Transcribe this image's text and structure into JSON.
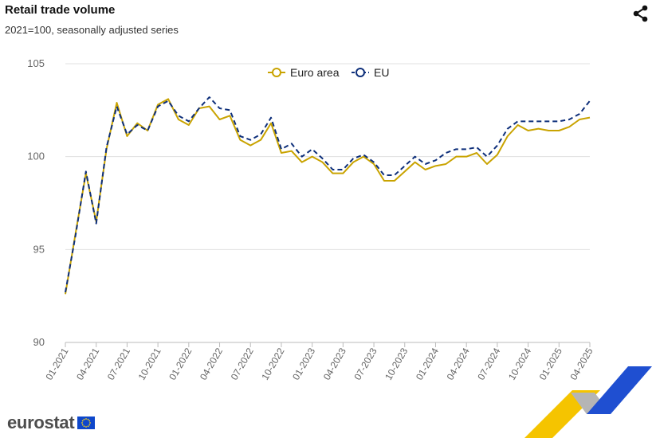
{
  "header": {
    "title": "Retail trade volume",
    "subtitle": "2021=100, seasonally adjusted series",
    "share_icon": "share-icon"
  },
  "branding": {
    "logo_text": "eurostat",
    "flag_icon": "eu-flag-icon"
  },
  "colors": {
    "euro_area": "#c9a300",
    "eu": "#0e2f7a",
    "grid": "#e0e0e0",
    "axis": "#bbbbbb",
    "tick_label": "#666666"
  },
  "chart_data": {
    "type": "line",
    "title": "Retail trade volume",
    "subtitle": "2021=100, seasonally adjusted series",
    "xlabel": "",
    "ylabel": "",
    "ylim": [
      90,
      105
    ],
    "yticks": [
      90,
      95,
      100,
      105
    ],
    "grid": true,
    "legend_position": "top-center",
    "x": [
      "01-2021",
      "02-2021",
      "03-2021",
      "04-2021",
      "05-2021",
      "06-2021",
      "07-2021",
      "08-2021",
      "09-2021",
      "10-2021",
      "11-2021",
      "12-2021",
      "01-2022",
      "02-2022",
      "03-2022",
      "04-2022",
      "05-2022",
      "06-2022",
      "07-2022",
      "08-2022",
      "09-2022",
      "10-2022",
      "11-2022",
      "12-2022",
      "01-2023",
      "02-2023",
      "03-2023",
      "04-2023",
      "05-2023",
      "06-2023",
      "07-2023",
      "08-2023",
      "09-2023",
      "10-2023",
      "11-2023",
      "12-2023",
      "01-2024",
      "02-2024",
      "03-2024",
      "04-2024",
      "05-2024",
      "06-2024",
      "07-2024",
      "08-2024",
      "09-2024",
      "10-2024",
      "11-2024",
      "12-2024",
      "01-2025",
      "02-2025",
      "03-2025",
      "04-2025"
    ],
    "x_tick_labels": [
      "01-2021",
      "04-2021",
      "07-2021",
      "10-2021",
      "01-2022",
      "04-2022",
      "07-2022",
      "10-2022",
      "01-2023",
      "04-2023",
      "07-2023",
      "10-2023",
      "01-2024",
      "04-2024",
      "07-2024",
      "10-2024",
      "01-2025",
      "04-2025"
    ],
    "series": [
      {
        "name": "Euro area",
        "style": "solid",
        "values": [
          92.6,
          95.9,
          99.1,
          96.5,
          100.4,
          102.9,
          101.1,
          101.8,
          101.4,
          102.8,
          103.1,
          102.0,
          101.7,
          102.6,
          102.7,
          102.0,
          102.2,
          100.9,
          100.6,
          100.9,
          101.8,
          100.2,
          100.3,
          99.7,
          100.0,
          99.7,
          99.1,
          99.1,
          99.7,
          100.0,
          99.6,
          98.7,
          98.7,
          99.2,
          99.7,
          99.3,
          99.5,
          99.6,
          100.0,
          100.0,
          100.2,
          99.6,
          100.1,
          101.1,
          101.7,
          101.4,
          101.5,
          101.4,
          101.4,
          101.6,
          102.0,
          102.1
        ]
      },
      {
        "name": "EU",
        "style": "dashed",
        "values": [
          92.7,
          95.8,
          99.2,
          96.4,
          100.5,
          102.7,
          101.2,
          101.7,
          101.4,
          102.7,
          103.0,
          102.2,
          101.9,
          102.6,
          103.2,
          102.6,
          102.5,
          101.1,
          100.9,
          101.2,
          102.1,
          100.4,
          100.7,
          100.0,
          100.4,
          99.9,
          99.3,
          99.3,
          99.9,
          100.1,
          99.7,
          99.0,
          99.0,
          99.5,
          100.0,
          99.6,
          99.8,
          100.2,
          100.4,
          100.4,
          100.5,
          100.0,
          100.6,
          101.5,
          101.9,
          101.9,
          101.9,
          101.9,
          101.9,
          102.0,
          102.3,
          103.0
        ]
      }
    ]
  }
}
